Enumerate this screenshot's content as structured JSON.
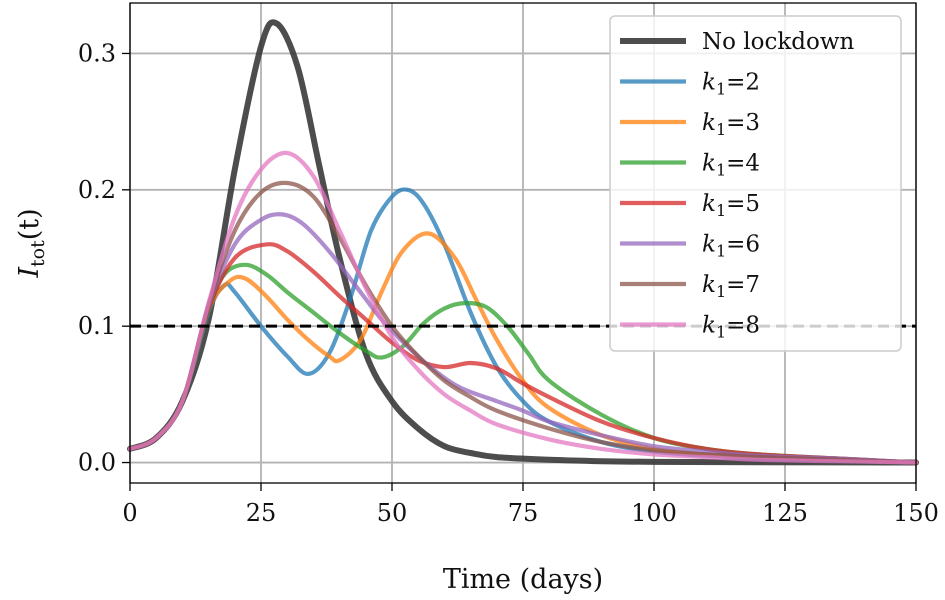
{
  "chart_data": {
    "type": "line",
    "title": "",
    "xlabel": "Time (days)",
    "ylabel": "I_tot(t)",
    "ylabel_main": "I",
    "ylabel_sub": "tot",
    "ylabel_arg": "(t)",
    "xlim": [
      0,
      150
    ],
    "ylim": [
      -0.015,
      0.337
    ],
    "xticks": [
      0,
      25,
      50,
      75,
      100,
      125,
      150
    ],
    "xtick_labels": [
      "0",
      "25",
      "50",
      "75",
      "100",
      "125",
      "150"
    ],
    "yticks": [
      0.0,
      0.1,
      0.2,
      0.3
    ],
    "ytick_labels": [
      "0.0",
      "0.1",
      "0.2",
      "0.3"
    ],
    "grid": true,
    "legend_position": "upper-right",
    "threshold": {
      "y": 0.1,
      "style": "dashed",
      "color": "#000000"
    },
    "series": [
      {
        "name": "No lockdown",
        "color": "#3a3a3a",
        "width": "thick",
        "x": [
          0,
          5,
          10,
          15,
          20,
          25,
          28,
          32,
          36,
          40,
          45,
          50,
          55,
          60,
          65,
          70,
          80,
          90,
          100,
          120,
          150
        ],
        "y": [
          0.01,
          0.018,
          0.045,
          0.105,
          0.215,
          0.305,
          0.322,
          0.29,
          0.22,
          0.15,
          0.08,
          0.045,
          0.025,
          0.012,
          0.007,
          0.004,
          0.002,
          0.001,
          0.0005,
          0.0002,
          0.0
        ]
      },
      {
        "name": "k1=2",
        "label_k": "k",
        "label_sub": "1",
        "label_val": "=2",
        "color": "#1f77b4",
        "x": [
          0,
          5,
          10,
          15,
          18,
          20,
          25,
          30,
          34,
          38,
          42,
          46,
          50,
          53,
          56,
          60,
          65,
          70,
          75,
          80,
          90,
          100,
          110,
          120,
          130,
          150
        ],
        "y": [
          0.01,
          0.018,
          0.045,
          0.11,
          0.13,
          0.125,
          0.1,
          0.078,
          0.065,
          0.08,
          0.12,
          0.17,
          0.195,
          0.2,
          0.19,
          0.16,
          0.11,
          0.07,
          0.045,
          0.03,
          0.015,
          0.008,
          0.005,
          0.003,
          0.002,
          0.0
        ]
      },
      {
        "name": "k1=3",
        "label_k": "k",
        "label_sub": "1",
        "label_val": "=3",
        "color": "#ff7f0e",
        "x": [
          0,
          5,
          10,
          15,
          19,
          22,
          26,
          30,
          34,
          38,
          40,
          44,
          48,
          52,
          57,
          62,
          66,
          70,
          75,
          80,
          90,
          100,
          110,
          120,
          135,
          150
        ],
        "y": [
          0.01,
          0.018,
          0.045,
          0.112,
          0.133,
          0.135,
          0.122,
          0.105,
          0.09,
          0.078,
          0.075,
          0.09,
          0.125,
          0.155,
          0.168,
          0.15,
          0.12,
          0.09,
          0.06,
          0.04,
          0.02,
          0.01,
          0.006,
          0.004,
          0.002,
          0.0
        ]
      },
      {
        "name": "k1=4",
        "label_k": "k",
        "label_sub": "1",
        "label_val": "=4",
        "color": "#2ca02c",
        "x": [
          0,
          5,
          10,
          15,
          18,
          22,
          26,
          30,
          35,
          40,
          45,
          48,
          52,
          56,
          60,
          64,
          68,
          72,
          76,
          80,
          90,
          100,
          110,
          120,
          135,
          150
        ],
        "y": [
          0.01,
          0.018,
          0.045,
          0.112,
          0.138,
          0.145,
          0.138,
          0.125,
          0.11,
          0.095,
          0.082,
          0.077,
          0.085,
          0.102,
          0.113,
          0.117,
          0.114,
          0.1,
          0.08,
          0.06,
          0.035,
          0.018,
          0.01,
          0.006,
          0.003,
          0.0
        ]
      },
      {
        "name": "k1=5",
        "label_k": "k",
        "label_sub": "1",
        "label_val": "=5",
        "color": "#d62728",
        "x": [
          0,
          5,
          10,
          15,
          20,
          26,
          30,
          35,
          40,
          45,
          50,
          55,
          60,
          65,
          70,
          75,
          80,
          90,
          100,
          110,
          120,
          135,
          150
        ],
        "y": [
          0.01,
          0.018,
          0.045,
          0.113,
          0.15,
          0.16,
          0.155,
          0.14,
          0.122,
          0.105,
          0.088,
          0.075,
          0.07,
          0.073,
          0.069,
          0.058,
          0.048,
          0.03,
          0.018,
          0.01,
          0.006,
          0.003,
          0.0
        ]
      },
      {
        "name": "k1=6",
        "label_k": "k",
        "label_sub": "1",
        "label_val": "=6",
        "color": "#9467bd",
        "x": [
          0,
          5,
          10,
          15,
          20,
          25,
          29,
          33,
          38,
          43,
          48,
          53,
          58,
          63,
          70,
          75,
          80,
          90,
          100,
          110,
          120,
          135,
          150
        ],
        "y": [
          0.01,
          0.018,
          0.045,
          0.115,
          0.16,
          0.178,
          0.182,
          0.175,
          0.155,
          0.13,
          0.105,
          0.085,
          0.068,
          0.055,
          0.045,
          0.038,
          0.03,
          0.02,
          0.012,
          0.008,
          0.005,
          0.003,
          0.0
        ]
      },
      {
        "name": "k1=7",
        "label_k": "k",
        "label_sub": "1",
        "label_val": "=7",
        "color": "#8c564b",
        "x": [
          0,
          5,
          10,
          15,
          20,
          25,
          30,
          35,
          40,
          45,
          50,
          55,
          60,
          65,
          70,
          80,
          90,
          100,
          110,
          120,
          135,
          150
        ],
        "y": [
          0.01,
          0.018,
          0.045,
          0.116,
          0.17,
          0.198,
          0.205,
          0.195,
          0.165,
          0.13,
          0.1,
          0.078,
          0.06,
          0.048,
          0.038,
          0.025,
          0.015,
          0.009,
          0.006,
          0.004,
          0.002,
          0.0
        ]
      },
      {
        "name": "k1=8",
        "label_k": "k",
        "label_sub": "1",
        "label_val": "=8",
        "color": "#e377c2",
        "x": [
          0,
          5,
          10,
          15,
          20,
          25,
          30,
          35,
          40,
          45,
          50,
          55,
          60,
          65,
          70,
          80,
          90,
          100,
          110,
          120,
          135,
          150
        ],
        "y": [
          0.01,
          0.018,
          0.045,
          0.117,
          0.18,
          0.215,
          0.227,
          0.21,
          0.17,
          0.128,
          0.092,
          0.068,
          0.05,
          0.038,
          0.028,
          0.017,
          0.01,
          0.006,
          0.004,
          0.002,
          0.001,
          0.0
        ]
      }
    ]
  }
}
